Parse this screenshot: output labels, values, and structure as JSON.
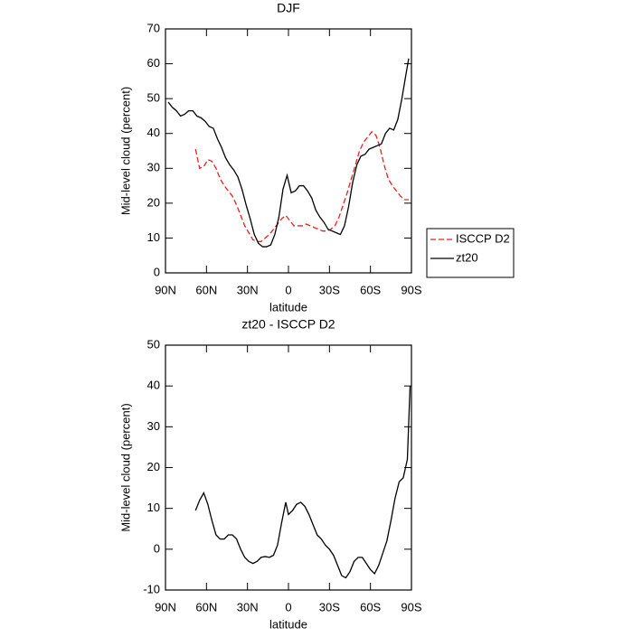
{
  "chart_data": [
    {
      "type": "line",
      "title": "DJF",
      "xlabel": "latitude",
      "ylabel": "Mid-level cloud (percent)",
      "xlim": [
        90,
        -90
      ],
      "ylim": [
        0,
        70
      ],
      "xticks": [
        {
          "value": 90,
          "label": "90N"
        },
        {
          "value": 60,
          "label": "60N"
        },
        {
          "value": 30,
          "label": "30N"
        },
        0,
        {
          "value": -30,
          "label": "30S"
        },
        {
          "value": -60,
          "label": "60S"
        },
        {
          "value": -90,
          "label": "90S"
        }
      ],
      "yticks": [
        0,
        10,
        20,
        30,
        40,
        50,
        60,
        70
      ],
      "legend": "right",
      "series": [
        {
          "name": "ISCCP D2",
          "color": "#e8231d",
          "style": "dashed",
          "x": [
            68,
            65,
            62,
            59,
            56,
            53,
            50,
            47,
            44,
            41,
            38,
            35,
            32,
            29,
            26,
            23,
            20,
            17,
            14,
            11,
            8,
            5,
            2,
            -1,
            -4,
            -7,
            -10,
            -13,
            -16,
            -19,
            -22,
            -25,
            -28,
            -31,
            -34,
            -37,
            -40,
            -43,
            -46,
            -49,
            -52,
            -55,
            -58,
            -61,
            -64,
            -67,
            -70,
            -73,
            -76,
            -79,
            -82,
            -85,
            -88
          ],
          "values": [
            35.5,
            30,
            30.5,
            32.5,
            32,
            30,
            27,
            25,
            23.5,
            22,
            19.5,
            16.5,
            13.5,
            11.5,
            9.5,
            9,
            9,
            10,
            11,
            12.5,
            14,
            15.5,
            16.5,
            15,
            13.5,
            13.5,
            13.5,
            14,
            13.5,
            13,
            12.5,
            12,
            12,
            12.5,
            13.5,
            16,
            19.5,
            23,
            27,
            31,
            35,
            37.5,
            39,
            40.5,
            39.5,
            36,
            31,
            27,
            25,
            23.5,
            22,
            21,
            21
          ]
        },
        {
          "name": "zt20",
          "color": "#000000",
          "style": "solid",
          "x": [
            88,
            85,
            82,
            79,
            76,
            73,
            70,
            67,
            64,
            61,
            58,
            55,
            52,
            49,
            46,
            43,
            40,
            37,
            34,
            31,
            28,
            25,
            22,
            19,
            16,
            13,
            10,
            7,
            4,
            1,
            -2,
            -5,
            -8,
            -11,
            -14,
            -17,
            -20,
            -23,
            -26,
            -29,
            -32,
            -35,
            -38,
            -41,
            -44,
            -47,
            -50,
            -53,
            -56,
            -59,
            -62,
            -65,
            -68,
            -71,
            -74,
            -77,
            -80,
            -83,
            -86,
            -88
          ],
          "values": [
            49,
            47.5,
            46.5,
            45,
            45.5,
            46.5,
            46.5,
            45,
            44.5,
            43.5,
            42,
            41.5,
            38.5,
            36,
            33,
            31,
            29.5,
            27.5,
            24,
            19.5,
            15.5,
            11,
            8.5,
            7.5,
            7.5,
            8,
            11,
            16,
            24,
            28,
            23,
            23.5,
            25,
            25,
            23.5,
            21.5,
            18,
            16,
            14.5,
            12.5,
            12,
            11.5,
            11,
            13.5,
            19,
            26,
            31,
            33.5,
            34,
            35.5,
            36,
            36.5,
            37,
            40,
            41.5,
            41,
            44,
            50,
            57,
            61.5
          ]
        }
      ]
    },
    {
      "type": "line",
      "title": "zt20 - ISCCP D2",
      "xlabel": "latitude",
      "ylabel": "Mid-level cloud (percent)",
      "xlim": [
        90,
        -90
      ],
      "ylim": [
        -10,
        50
      ],
      "xticks": [
        {
          "value": 90,
          "label": "90N"
        },
        {
          "value": 60,
          "label": "60N"
        },
        {
          "value": 30,
          "label": "30N"
        },
        0,
        {
          "value": -30,
          "label": "30S"
        },
        {
          "value": -60,
          "label": "60S"
        },
        {
          "value": -90,
          "label": "90S"
        }
      ],
      "yticks": [
        -10,
        0,
        10,
        20,
        30,
        40,
        50
      ],
      "color": "#000000",
      "x": [
        68,
        65,
        62,
        59,
        56,
        53,
        50,
        47,
        44,
        41,
        38,
        35,
        32,
        29,
        26,
        23,
        20,
        17,
        14,
        11,
        8,
        5,
        2,
        0,
        -3,
        -6,
        -9,
        -12,
        -15,
        -18,
        -21,
        -24,
        -27,
        -30,
        -33,
        -36,
        -39,
        -42,
        -45,
        -48,
        -51,
        -54,
        -57,
        -60,
        -63,
        -66,
        -69,
        -72,
        -75,
        -78,
        -81,
        -84,
        -87,
        -89
      ],
      "values": [
        9.5,
        12,
        13.8,
        11,
        7,
        3.5,
        2.5,
        2.5,
        3.5,
        3.5,
        2.5,
        0,
        -2,
        -3,
        -3.5,
        -3,
        -2,
        -1.8,
        -2,
        -1.5,
        1,
        6.5,
        11.5,
        8.5,
        9.5,
        11,
        11.5,
        10.5,
        8.5,
        6,
        3.5,
        2.5,
        1,
        0,
        -1.5,
        -4,
        -6.5,
        -7,
        -5.5,
        -3,
        -2,
        -2,
        -3.5,
        -5,
        -6,
        -4,
        -1,
        2,
        7,
        12.5,
        16.5,
        17.5,
        22,
        40
      ]
    }
  ]
}
